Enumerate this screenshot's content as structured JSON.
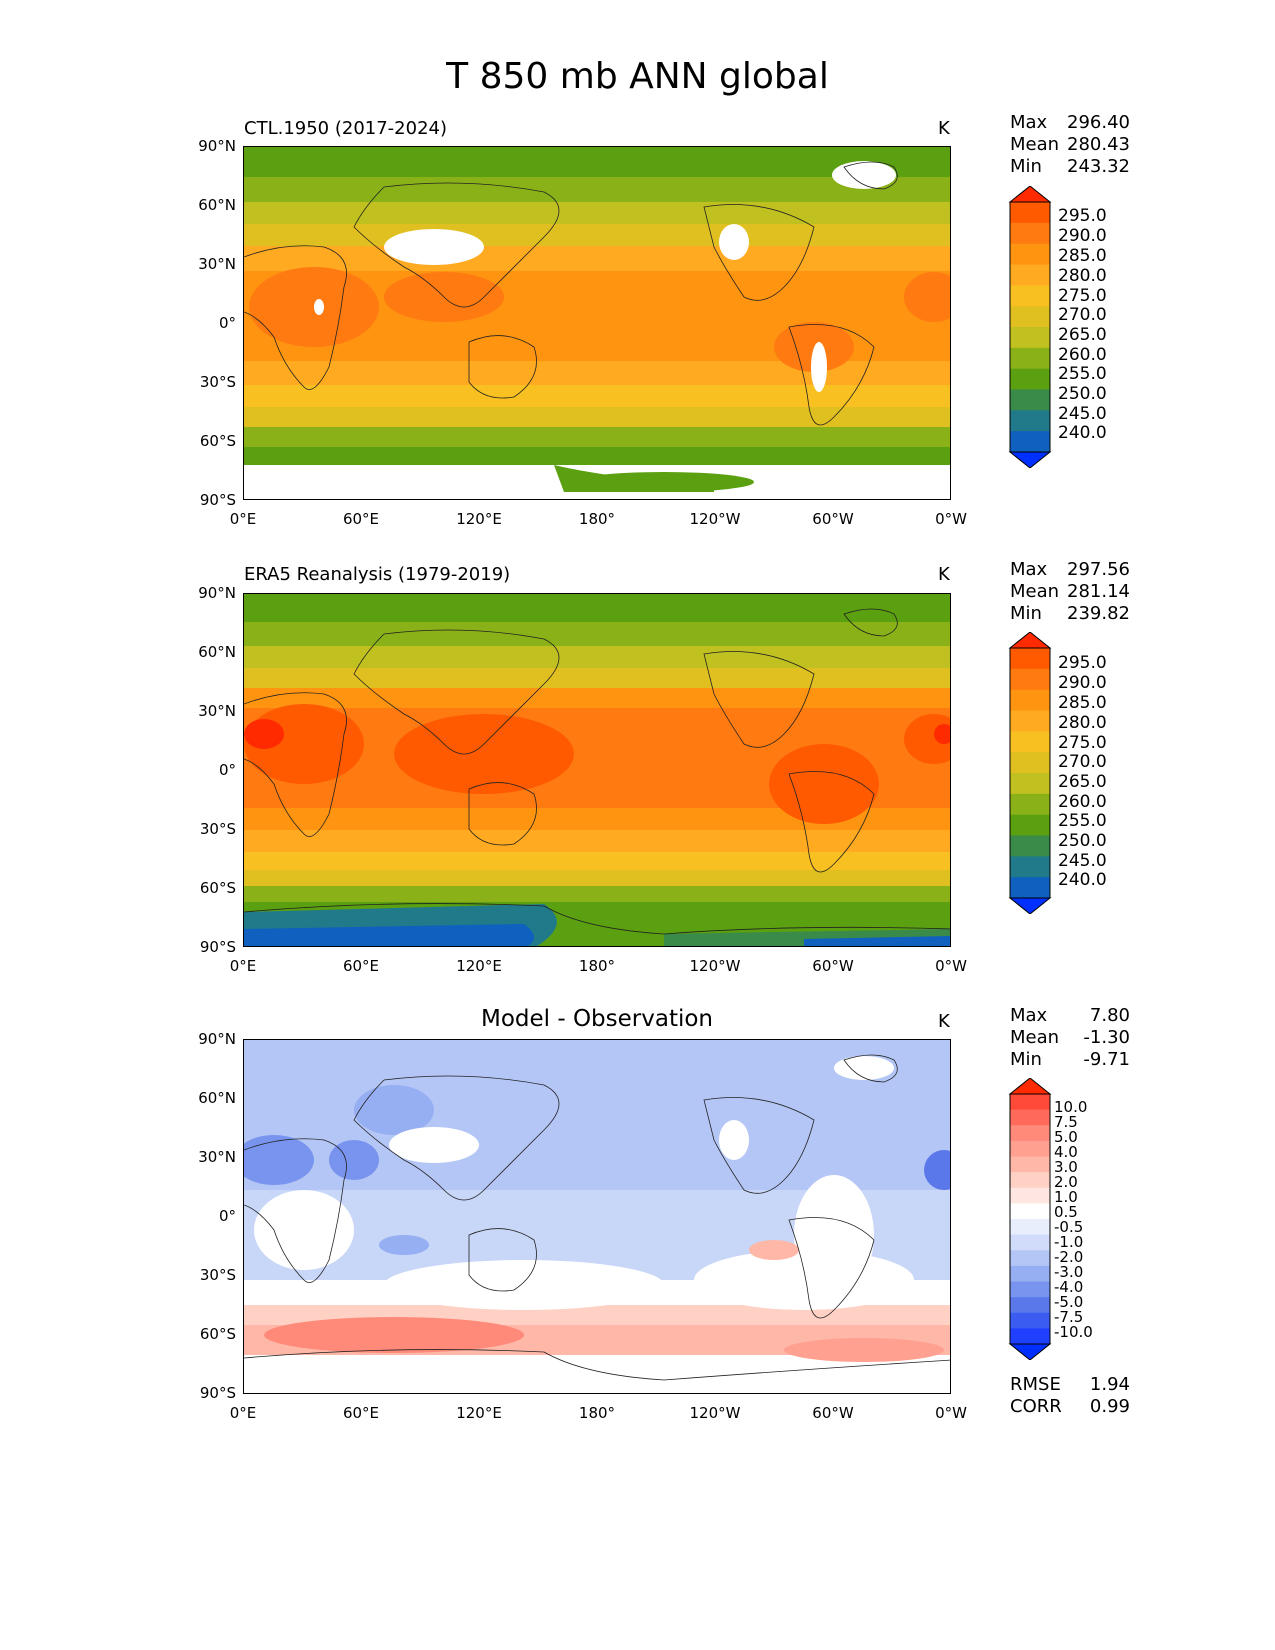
{
  "figure": {
    "title": "T 850 mb ANN global"
  },
  "axes": {
    "lat_labels": [
      "90°N",
      "60°N",
      "30°N",
      "0°",
      "30°S",
      "60°S",
      "90°S"
    ],
    "lon_labels": [
      "0°E",
      "60°E",
      "120°E",
      "180°",
      "120°W",
      "60°W",
      "0°W"
    ]
  },
  "panels": [
    {
      "title": "CTL.1950 (2017-2024)",
      "units": "K",
      "stats": [
        {
          "label": "Max",
          "value": "296.40"
        },
        {
          "label": "Mean",
          "value": "280.43"
        },
        {
          "label": "Min",
          "value": "243.32"
        }
      ],
      "colorbar": {
        "labels": [
          "295.0",
          "290.0",
          "285.0",
          "280.0",
          "275.0",
          "270.0",
          "265.0",
          "260.0",
          "255.0",
          "250.0",
          "245.0",
          "240.0"
        ],
        "colors": [
          "#ff2a00",
          "#ff5a00",
          "#ff7a10",
          "#ff9410",
          "#ffaa20",
          "#f8c020",
          "#e0c020",
          "#c0c020",
          "#8ab218",
          "#5aa010",
          "#3a8a4a",
          "#207a8a",
          "#1060c0",
          "#0030ff"
        ]
      }
    },
    {
      "title": "ERA5 Reanalysis (1979-2019)",
      "units": "K",
      "stats": [
        {
          "label": "Max",
          "value": "297.56"
        },
        {
          "label": "Mean",
          "value": "281.14"
        },
        {
          "label": "Min",
          "value": "239.82"
        }
      ],
      "colorbar": {
        "labels": [
          "295.0",
          "290.0",
          "285.0",
          "280.0",
          "275.0",
          "270.0",
          "265.0",
          "260.0",
          "255.0",
          "250.0",
          "245.0",
          "240.0"
        ],
        "colors": [
          "#ff2a00",
          "#ff5a00",
          "#ff7a10",
          "#ff9410",
          "#ffaa20",
          "#f8c020",
          "#e0c020",
          "#c0c020",
          "#8ab218",
          "#5aa010",
          "#3a8a4a",
          "#207a8a",
          "#1060c0",
          "#0030ff"
        ]
      }
    },
    {
      "title": "Model - Observation",
      "units": "K",
      "stats": [
        {
          "label": "Max",
          "value": "7.80"
        },
        {
          "label": "Mean",
          "value": "-1.30"
        },
        {
          "label": "Min",
          "value": "-9.71"
        }
      ],
      "colorbar": {
        "labels": [
          "10.0",
          "7.5",
          "5.0",
          "4.0",
          "3.0",
          "2.0",
          "1.0",
          "0.5",
          "-0.5",
          "-1.0",
          "-2.0",
          "-3.0",
          "-4.0",
          "-5.0",
          "-7.5",
          "-10.0"
        ],
        "colors": [
          "#ff2a00",
          "#ff4a3a",
          "#ff6a5a",
          "#ff8a7a",
          "#ffa090",
          "#ffb8a8",
          "#ffd0c4",
          "#ffe6e0",
          "#ffffff",
          "#e8eefc",
          "#d0dcfa",
          "#b4c6f6",
          "#96aef2",
          "#7894ee",
          "#5a78ea",
          "#3a5cf0",
          "#2040ff",
          "#0030ff"
        ]
      },
      "metrics": [
        {
          "label": "RMSE",
          "value": "1.94"
        },
        {
          "label": "CORR",
          "value": "0.99"
        }
      ]
    }
  ]
}
